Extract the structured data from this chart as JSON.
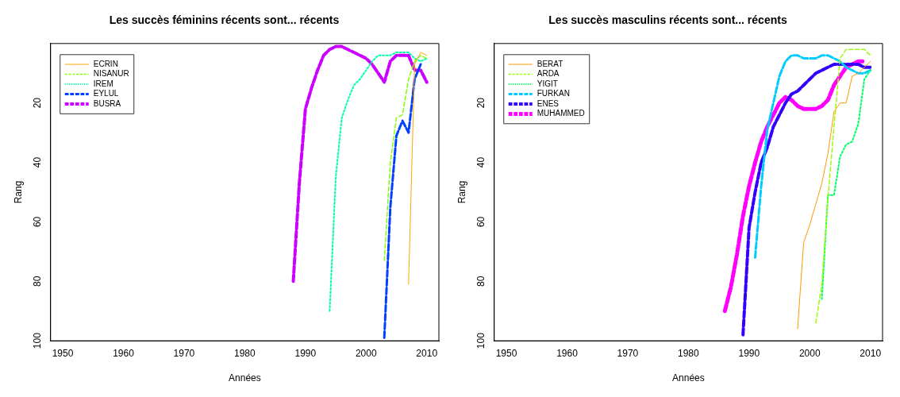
{
  "chart_data": [
    {
      "type": "line",
      "title": "Les succès féminins récents sont... récents",
      "xlabel": "Années",
      "ylabel": "Rang",
      "xlim": [
        1948,
        2012
      ],
      "xticks": [
        1950,
        1960,
        1970,
        1980,
        1990,
        2000,
        2010
      ],
      "ylim": [
        100,
        0
      ],
      "yticks": [
        20,
        40,
        60,
        80,
        100
      ],
      "grid": false,
      "legend": "top left",
      "series": [
        {
          "name": "ECRIN",
          "color": "#ffa500",
          "line_style": "solid",
          "x": [
            2007,
            2008,
            2009,
            2010
          ],
          "values": [
            81,
            7,
            3,
            4
          ]
        },
        {
          "name": "NISANUR",
          "color": "#80ff00",
          "line_style": "dashed",
          "x": [
            2003,
            2004,
            2005,
            2006,
            2007,
            2008,
            2009,
            2010
          ],
          "values": [
            73,
            40,
            25,
            24,
            12,
            6,
            4,
            5
          ]
        },
        {
          "name": "IREM",
          "color": "#00ffaa",
          "line_style": "dotted",
          "x": [
            1994,
            1995,
            1996,
            1997,
            1998,
            1999,
            2000,
            2001,
            2002,
            2003,
            2004,
            2005,
            2006,
            2007,
            2008,
            2009,
            2010
          ],
          "values": [
            90,
            45,
            25,
            19,
            14,
            12,
            9,
            6,
            4,
            4,
            4,
            3,
            3,
            3,
            5,
            6,
            5
          ]
        },
        {
          "name": "EYLUL",
          "color": "#0040ff",
          "line_style": "dashed",
          "x": [
            2003,
            2004,
            2005,
            2006,
            2007,
            2008,
            2009
          ],
          "values": [
            99,
            55,
            31,
            26,
            30,
            12,
            7
          ]
        },
        {
          "name": "BUSRA",
          "color": "#cc00ff",
          "line_style": "dashed",
          "x": [
            1988,
            1989,
            1990,
            1991,
            1992,
            1993,
            1994,
            1995,
            1996,
            1997,
            1998,
            1999,
            2000,
            2001,
            2002,
            2003,
            2004,
            2005,
            2006,
            2007,
            2008,
            2009,
            2010
          ],
          "values": [
            80,
            47,
            22,
            15,
            9,
            4,
            2,
            1,
            1,
            2,
            3,
            4,
            5,
            7,
            10,
            13,
            6,
            4,
            4,
            4,
            9,
            9,
            13
          ]
        }
      ]
    },
    {
      "type": "line",
      "title": "Les succès masculins récents sont... récents",
      "xlabel": "Années",
      "ylabel": "Rang",
      "xlim": [
        1948,
        2012
      ],
      "xticks": [
        1950,
        1960,
        1970,
        1980,
        1990,
        2000,
        2010
      ],
      "ylim": [
        100,
        0
      ],
      "yticks": [
        20,
        40,
        60,
        80,
        100
      ],
      "grid": false,
      "legend": "top left",
      "series": [
        {
          "name": "BERAT",
          "color": "#ff9900",
          "line_style": "solid",
          "x": [
            1998,
            1999,
            2000,
            2001,
            2002,
            2003,
            2004,
            2005,
            2006,
            2007,
            2008,
            2009,
            2010
          ],
          "values": [
            96,
            67,
            61,
            54,
            47,
            37,
            23,
            20,
            20,
            11,
            10,
            8,
            6
          ]
        },
        {
          "name": "ARDA",
          "color": "#99ff00",
          "line_style": "dashed",
          "x": [
            2001,
            2002,
            2003,
            2004,
            2005,
            2006,
            2007,
            2008,
            2009,
            2010
          ],
          "values": [
            94,
            81,
            52,
            28,
            5,
            2,
            2,
            2,
            2,
            4
          ]
        },
        {
          "name": "YIGIT",
          "color": "#00ff66",
          "line_style": "dotted",
          "x": [
            2002,
            2003,
            2004,
            2005,
            2006,
            2007,
            2008,
            2009,
            2010
          ],
          "values": [
            86,
            51,
            51,
            38,
            34,
            33,
            27,
            12,
            9
          ]
        },
        {
          "name": "FURKAN",
          "color": "#00ccff",
          "line_style": "dashed",
          "x": [
            1991,
            1992,
            1993,
            1994,
            1995,
            1996,
            1997,
            1998,
            1999,
            2000,
            2001,
            2002,
            2003,
            2004,
            2005,
            2006,
            2007,
            2008,
            2009,
            2010
          ],
          "values": [
            72,
            48,
            29,
            20,
            11,
            6,
            4,
            4,
            5,
            5,
            5,
            4,
            4,
            5,
            6,
            8,
            9,
            10,
            10,
            9
          ]
        },
        {
          "name": "ENES",
          "color": "#3300ff",
          "line_style": "dashed",
          "x": [
            1989,
            1990,
            1991,
            1992,
            1993,
            1994,
            1995,
            1996,
            1997,
            1998,
            1999,
            2000,
            2001,
            2002,
            2003,
            2004,
            2005,
            2006,
            2007,
            2008,
            2009,
            2010
          ],
          "values": [
            98,
            62,
            50,
            40,
            35,
            28,
            24,
            20,
            17,
            16,
            14,
            12,
            10,
            9,
            8,
            7,
            7,
            7,
            7,
            7,
            8,
            8
          ]
        },
        {
          "name": "MUHAMMED",
          "color": "#ff00ff",
          "line_style": "dashed",
          "x": [
            1986,
            1987,
            1988,
            1989,
            1990,
            1991,
            1992,
            1993,
            1994,
            1995,
            1996,
            1997,
            1998,
            1999,
            2000,
            2001,
            2002,
            2003,
            2004,
            2005,
            2006,
            2007,
            2008,
            2009
          ],
          "values": [
            90,
            82,
            71,
            58,
            48,
            40,
            33,
            28,
            24,
            20,
            18,
            19,
            21,
            22,
            22,
            22,
            21,
            19,
            14,
            11,
            8,
            7,
            6,
            6
          ]
        }
      ]
    }
  ]
}
